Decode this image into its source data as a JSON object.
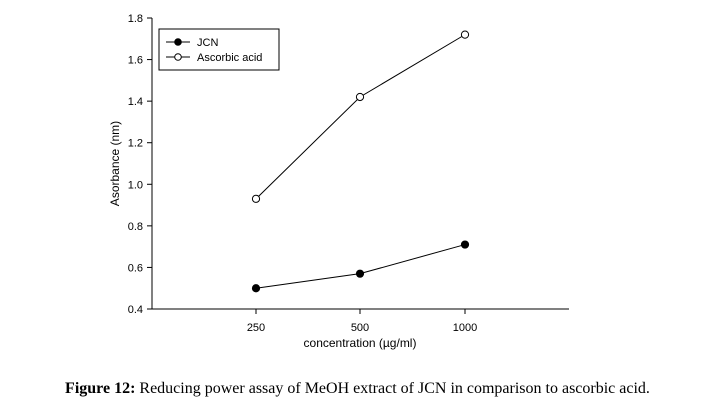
{
  "chart_data": {
    "type": "line",
    "categories": [
      "250",
      "500",
      "1000"
    ],
    "series": [
      {
        "name": "JCN",
        "values": [
          0.5,
          0.57,
          0.71
        ],
        "marker": "filled-circle"
      },
      {
        "name": "Ascorbic acid",
        "values": [
          0.93,
          1.42,
          1.72
        ],
        "marker": "open-circle"
      }
    ],
    "xlabel": "concentration (µg/ml)",
    "ylabel": "Asorbance (nm)",
    "ylim": [
      0.4,
      1.8
    ],
    "yticks": [
      0.4,
      0.6,
      0.8,
      1.0,
      1.2,
      1.4,
      1.6,
      1.8
    ],
    "ytick_labels": [
      "0.4",
      "0.6",
      "0.8",
      "1.0",
      "1.2",
      "1.4",
      "1.6",
      "1.8"
    ],
    "grid": false,
    "legend_position": "top-left"
  },
  "caption": {
    "label": "Figure 12:",
    "text": " Reducing power assay of MeOH extract of JCN in comparison to ascorbic acid."
  }
}
